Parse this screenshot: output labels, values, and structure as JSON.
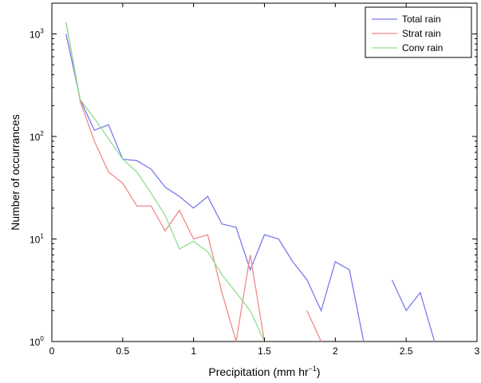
{
  "chart_data": {
    "type": "line",
    "xlabel": "Precipitation (mm hr",
    "xlabel_sup": "−1",
    "xlabel_end": ")",
    "ylabel": "Number of occurrances",
    "xlim": [
      0,
      3
    ],
    "ylim_log10": [
      0,
      3.3
    ],
    "y_scale": "log",
    "x_ticks": [
      {
        "v": 0,
        "label": "0"
      },
      {
        "v": 0.5,
        "label": "0.5"
      },
      {
        "v": 1,
        "label": "1"
      },
      {
        "v": 1.5,
        "label": "1.5"
      },
      {
        "v": 2,
        "label": "2"
      },
      {
        "v": 2.5,
        "label": "2.5"
      },
      {
        "v": 3,
        "label": "3"
      }
    ],
    "y_ticks": [
      {
        "exp": 0,
        "base": "10",
        "sup": "0"
      },
      {
        "exp": 1,
        "base": "10",
        "sup": "1"
      },
      {
        "exp": 2,
        "base": "10",
        "sup": "2"
      },
      {
        "exp": 3,
        "base": "10",
        "sup": "3"
      }
    ],
    "legend_position": "top-right",
    "series": [
      {
        "name": "Total rain",
        "color": "#7a7af0",
        "points": [
          [
            0.1,
            1000
          ],
          [
            0.2,
            230
          ],
          [
            0.3,
            115
          ],
          [
            0.4,
            130
          ],
          [
            0.5,
            60
          ],
          [
            0.6,
            58
          ],
          [
            0.7,
            48
          ],
          [
            0.8,
            32
          ],
          [
            0.9,
            26
          ],
          [
            1.0,
            20
          ],
          [
            1.1,
            26
          ],
          [
            1.2,
            14
          ],
          [
            1.3,
            13
          ],
          [
            1.4,
            5
          ],
          [
            1.5,
            11
          ],
          [
            1.6,
            10
          ],
          [
            1.7,
            6
          ],
          [
            1.8,
            4
          ],
          [
            1.9,
            2
          ],
          [
            2.0,
            6
          ],
          [
            2.1,
            5
          ],
          [
            2.2,
            1
          ],
          null,
          [
            2.4,
            4
          ],
          [
            2.5,
            2
          ],
          [
            2.6,
            3
          ],
          [
            2.7,
            1
          ]
        ]
      },
      {
        "name": "Strat rain",
        "color": "#f08a8a",
        "points": [
          [
            0.1,
            1300
          ],
          [
            0.2,
            220
          ],
          [
            0.3,
            90
          ],
          [
            0.4,
            45
          ],
          [
            0.5,
            35
          ],
          [
            0.6,
            21
          ],
          [
            0.7,
            21
          ],
          [
            0.8,
            12
          ],
          [
            0.9,
            19
          ],
          [
            1.0,
            10
          ],
          [
            1.1,
            11
          ],
          [
            1.2,
            3
          ],
          [
            1.3,
            1
          ],
          [
            1.4,
            7
          ],
          [
            1.5,
            1
          ],
          null,
          [
            1.8,
            2
          ],
          [
            1.9,
            1
          ]
        ]
      },
      {
        "name": "Conv rain",
        "color": "#8ee08e",
        "points": [
          [
            0.1,
            1300
          ],
          [
            0.2,
            230
          ],
          [
            0.3,
            150
          ],
          [
            0.4,
            95
          ],
          [
            0.5,
            60
          ],
          [
            0.6,
            45
          ],
          [
            0.7,
            28
          ],
          [
            0.8,
            17
          ],
          [
            0.9,
            8
          ],
          [
            1.0,
            9.5
          ],
          [
            1.1,
            7.5
          ],
          [
            1.2,
            4.5
          ],
          [
            1.3,
            3
          ],
          [
            1.4,
            2
          ],
          [
            1.5,
            1
          ]
        ]
      }
    ]
  }
}
